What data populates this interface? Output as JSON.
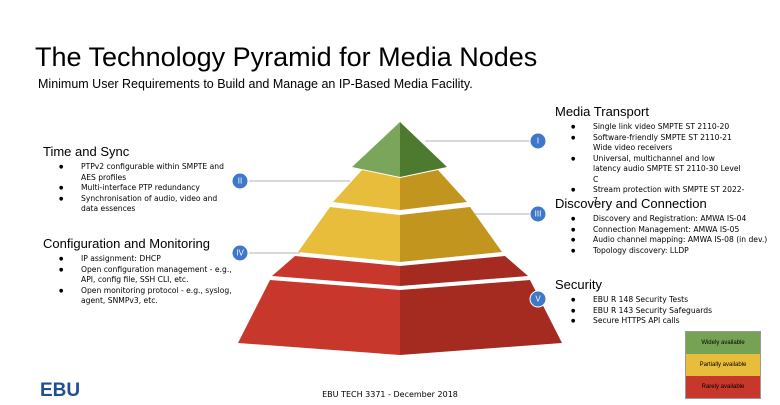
{
  "header": {
    "title": "The Technology Pyramid for Media Nodes",
    "subtitle": "Minimum User Requirements to Build and Manage an IP-Based Media Facility."
  },
  "sections": [
    {
      "heading": "Media Transport",
      "marker": "I",
      "items": [
        "Single link video SMPTE ST 2110-20",
        "Software-friendly SMPTE ST 2110-21 Wide video receivers",
        "Universal, multichannel and low latency audio SMPTE ST 2110-30 Level C",
        "Stream protection with SMPTE ST 2022-7"
      ]
    },
    {
      "heading": "Time and Sync",
      "marker": "II",
      "items": [
        "PTPv2 configurable within SMPTE and AES profiles",
        "Multi-interface PTP redundancy",
        "Synchronisation of audio, video and data essences"
      ]
    },
    {
      "heading": "Discovery and Connection",
      "marker": "III",
      "items": [
        "Discovery and Registration: AMWA IS-04",
        "Connection Management: AMWA IS-05",
        "Audio channel mapping: AMWA IS-08 (in dev.)",
        "Topology discovery: LLDP"
      ]
    },
    {
      "heading": "Configuration and Monitoring",
      "marker": "IV",
      "items": [
        "IP assignment: DHCP",
        "Open configuration management - e.g., API, config file, SSH CLI, etc.",
        "Open monitoring protocol - e.g., syslog, agent, SNMPv3, etc."
      ]
    },
    {
      "heading": "Security",
      "marker": "V",
      "items": [
        "EBU R 148 Security Tests",
        "EBU R 143 Security Safeguards",
        "Secure HTTPS API calls"
      ]
    }
  ],
  "legend": [
    "Widely available",
    "Partially available",
    "Rarely available"
  ],
  "footer": "EBU TECH 3371 - December 2018",
  "logo": "EBU"
}
